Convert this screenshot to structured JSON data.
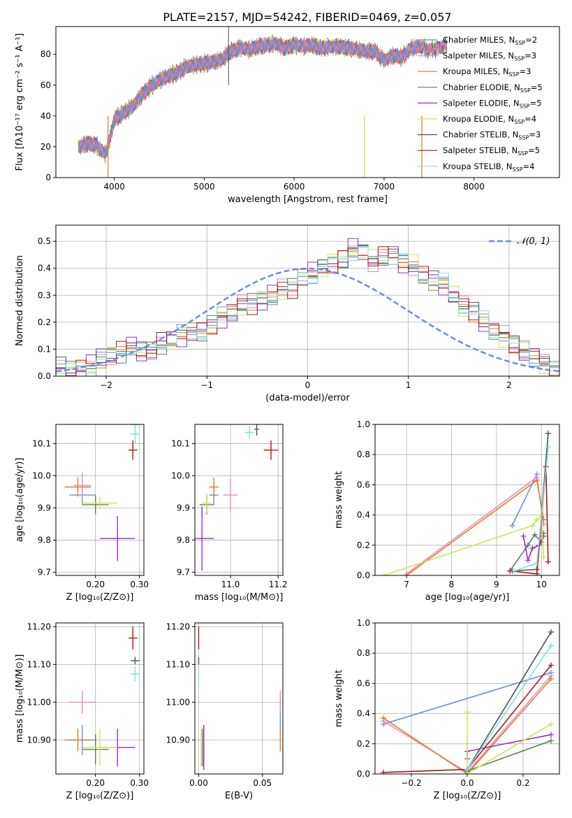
{
  "figure_title": "PLATE=2157, MJD=54242, FIBERID=0469, z=0.057",
  "colors": {
    "Chabrier MILES": "#6a8fd8",
    "Salpeter MILES": "#e58ac6",
    "Kroupa MILES": "#e07b26",
    "Chabrier ELODIE": "#5f7f5f",
    "Salpeter ELODIE": "#9a30b8",
    "Kroupa ELODIE": "#c9e659",
    "Chabrier STELIB": "#505050",
    "Salpeter STELIB": "#aa1515",
    "Kroupa STELIB": "#7ee0e4"
  },
  "legend_labels": [
    {
      "name": "Chabrier MILES",
      "base": "Chabrier MILES, N",
      "sub": "SSP",
      "tail": "=2"
    },
    {
      "name": "Salpeter MILES",
      "base": "Salpeter MILES, N",
      "sub": "SSP",
      "tail": "=3"
    },
    {
      "name": "Kroupa MILES",
      "base": "Kroupa MILES, N",
      "sub": "SSP",
      "tail": "=3"
    },
    {
      "name": "Chabrier ELODIE",
      "base": "Chabrier ELODIE, N",
      "sub": "SSP",
      "tail": "=5"
    },
    {
      "name": "Salpeter ELODIE",
      "base": "Salpeter ELODIE, N",
      "sub": "SSP",
      "tail": "=5"
    },
    {
      "name": "Kroupa ELODIE",
      "base": "Kroupa ELODIE, N",
      "sub": "SSP",
      "tail": "=4"
    },
    {
      "name": "Chabrier STELIB",
      "base": "Chabrier STELIB, N",
      "sub": "SSP",
      "tail": "=3"
    },
    {
      "name": "Salpeter STELIB",
      "base": "Salpeter STELIB, N",
      "sub": "SSP",
      "tail": "=5"
    },
    {
      "name": "Kroupa STELIB",
      "base": "Kroupa STELIB, N",
      "sub": "SSP",
      "tail": "=4"
    }
  ],
  "chart_data": [
    {
      "id": "spectrum",
      "type": "line",
      "xlabel": "wavelength [Angstrom, rest frame]",
      "ylabel": "Flux [fλ10⁻¹⁷ erg cm⁻² s⁻¹ A⁻¹]",
      "xlim": [
        3350,
        8950
      ],
      "ylim": [
        0,
        98
      ],
      "xticks": [
        4000,
        5000,
        6000,
        7000,
        8000
      ],
      "yticks": [
        0,
        20,
        40,
        60,
        80
      ],
      "x": [
        3600,
        3700,
        3800,
        3900,
        3950,
        4000,
        4100,
        4200,
        4300,
        4400,
        4500,
        4600,
        4700,
        4800,
        4900,
        5000,
        5100,
        5200,
        5300,
        5400,
        5500,
        5600,
        5700,
        5800,
        5900,
        6000,
        6100,
        6200,
        6300,
        6400,
        6500,
        6600,
        6700,
        6800,
        6900,
        7000,
        7100,
        7200,
        7300,
        7400,
        7500,
        7600,
        7700,
        7800,
        7900,
        8000,
        8100,
        8200,
        8300,
        8400,
        8500,
        8600,
        8700,
        8800,
        8900
      ],
      "y": [
        20,
        22,
        21,
        15,
        25,
        38,
        42,
        46,
        53,
        59,
        63,
        66,
        68,
        72,
        73,
        74,
        75,
        77,
        82,
        84,
        83,
        85,
        86,
        87,
        84,
        86,
        85,
        86,
        84,
        85,
        85,
        84,
        83,
        82,
        82,
        76,
        79,
        78,
        84,
        85,
        83,
        84,
        86,
        85,
        84,
        84,
        84,
        85,
        84,
        85,
        84,
        85,
        84,
        85,
        84
      ],
      "series_end": [
        7420,
        7700,
        7420,
        7700,
        7700,
        7700,
        7700,
        7420,
        7700
      ],
      "dips": [
        {
          "x": 3930,
          "y": 0
        },
        {
          "x": 6780,
          "y": 0
        },
        {
          "x": 7420,
          "y": 0
        }
      ],
      "spike": {
        "x": 5270,
        "y": 98
      }
    },
    {
      "id": "residuals",
      "type": "histogram",
      "xlabel": "(data-model)/error",
      "ylabel": "Normed distribution",
      "xlim": [
        -2.5,
        2.5
      ],
      "ylim": [
        0,
        0.56
      ],
      "xticks": [
        -2,
        -1,
        0,
        1,
        2
      ],
      "yticks": [
        0,
        0.1,
        0.2,
        0.3,
        0.4,
        0.5
      ],
      "bin_width": 0.1,
      "bin_start": -2.5,
      "base_values": [
        0.03,
        0.02,
        0.03,
        0.04,
        0.06,
        0.08,
        0.09,
        0.11,
        0.09,
        0.1,
        0.12,
        0.14,
        0.15,
        0.17,
        0.16,
        0.19,
        0.22,
        0.24,
        0.26,
        0.27,
        0.28,
        0.3,
        0.32,
        0.33,
        0.36,
        0.38,
        0.4,
        0.42,
        0.43,
        0.47,
        0.46,
        0.43,
        0.44,
        0.45,
        0.42,
        0.41,
        0.37,
        0.36,
        0.34,
        0.3,
        0.26,
        0.24,
        0.2,
        0.17,
        0.15,
        0.12,
        0.09,
        0.07,
        0.05,
        0.02
      ],
      "normal_label": "𝒩(0, 1)"
    },
    {
      "id": "age_vs_Z",
      "type": "scatter",
      "xlabel": "Z [log₁₀(Z/Z⊙)]",
      "ylabel": "age  [log₁₀(age/yr)]",
      "xlim": [
        0.11,
        0.31
      ],
      "ylim": [
        9.69,
        10.16
      ],
      "xticks": [
        0.2,
        0.3
      ],
      "yticks": [
        9.7,
        9.8,
        9.9,
        10.0,
        10.1
      ],
      "points": [
        {
          "s": "Chabrier MILES",
          "x": 0.17,
          "y": 9.94,
          "xe": 0.03,
          "ye": 0.03
        },
        {
          "s": "Salpeter MILES",
          "x": 0.17,
          "y": 9.97,
          "xe": 0.02,
          "ye": 0.04
        },
        {
          "s": "Kroupa MILES",
          "x": 0.16,
          "y": 9.965,
          "xe": 0.03,
          "ye": 0.03
        },
        {
          "s": "Chabrier ELODIE",
          "x": 0.2,
          "y": 9.91,
          "xe": 0.03,
          "ye": 0.03
        },
        {
          "s": "Salpeter ELODIE",
          "x": 0.25,
          "y": 9.805,
          "xe": 0.04,
          "ye": 0.07
        },
        {
          "s": "Kroupa ELODIE",
          "x": 0.21,
          "y": 9.915,
          "xe": 0.04,
          "ye": 0.02
        },
        {
          "s": "Chabrier STELIB",
          "x": 0.29,
          "y": 10.16,
          "xe": 0.01,
          "ye": 0.01
        },
        {
          "s": "Salpeter STELIB",
          "x": 0.285,
          "y": 10.08,
          "xe": 0.01,
          "ye": 0.03
        },
        {
          "s": "Kroupa STELIB",
          "x": 0.29,
          "y": 10.13,
          "xe": 0.01,
          "ye": 0.03
        }
      ]
    },
    {
      "id": "age_vs_mass",
      "type": "scatter",
      "xlabel": "mass [log₁₀(M/M⊙)]",
      "ylabel": "",
      "xlim": [
        10.85,
        11.22
      ],
      "ylim": [
        9.69,
        10.16
      ],
      "xticks": [
        11.0,
        11.2
      ],
      "yticks": [
        9.7,
        9.8,
        9.9,
        10.0,
        10.1
      ],
      "points": [
        {
          "s": "Chabrier MILES",
          "x": 10.93,
          "y": 9.94,
          "xe": 0.02,
          "ye": 0.03
        },
        {
          "s": "Salpeter MILES",
          "x": 11.0,
          "y": 9.94,
          "xe": 0.03,
          "ye": 0.05
        },
        {
          "s": "Kroupa MILES",
          "x": 10.93,
          "y": 9.965,
          "xe": 0.02,
          "ye": 0.03
        },
        {
          "s": "Chabrier ELODIE",
          "x": 10.9,
          "y": 9.91,
          "xe": 0.03,
          "ye": 0.03
        },
        {
          "s": "Salpeter ELODIE",
          "x": 10.88,
          "y": 9.805,
          "xe": 0.05,
          "ye": 0.1
        },
        {
          "s": "Kroupa ELODIE",
          "x": 10.9,
          "y": 9.915,
          "xe": 0.02,
          "ye": 0.03
        },
        {
          "s": "Chabrier STELIB",
          "x": 11.11,
          "y": 10.145,
          "xe": 0.01,
          "ye": 0.02
        },
        {
          "s": "Salpeter STELIB",
          "x": 11.17,
          "y": 10.08,
          "xe": 0.03,
          "ye": 0.03
        },
        {
          "s": "Kroupa STELIB",
          "x": 11.08,
          "y": 10.135,
          "xe": 0.02,
          "ye": 0.02
        }
      ]
    },
    {
      "id": "weight_vs_age",
      "type": "line",
      "xlabel": "age  [log₁₀(age/yr)]",
      "ylabel": "mass weight",
      "xlim": [
        6.3,
        10.4
      ],
      "ylim": [
        0,
        1
      ],
      "xticks": [
        7,
        8,
        9,
        10
      ],
      "yticks": [
        0,
        0.2,
        0.4,
        0.6,
        0.8,
        1.0
      ],
      "series": [
        {
          "s": "Chabrier MILES",
          "x": [
            9.35,
            9.9
          ],
          "y": [
            0.33,
            0.67
          ]
        },
        {
          "s": "Salpeter MILES",
          "x": [
            7.0,
            9.9,
            10.05
          ],
          "y": [
            0.01,
            0.65,
            0.34
          ]
        },
        {
          "s": "Kroupa MILES",
          "x": [
            7.0,
            9.9,
            10.05
          ],
          "y": [
            0.0,
            0.63,
            0.37
          ]
        },
        {
          "s": "Chabrier ELODIE",
          "x": [
            9.3,
            9.7,
            9.85,
            10.0,
            10.05
          ],
          "y": [
            0.03,
            0.2,
            0.27,
            0.22,
            0.28
          ]
        },
        {
          "s": "Salpeter ELODIE",
          "x": [
            9.6,
            9.7,
            9.8,
            9.95,
            10.05
          ],
          "y": [
            0.26,
            0.1,
            0.18,
            0.2,
            0.26
          ]
        },
        {
          "s": "Kroupa ELODIE",
          "x": [
            6.5,
            9.8,
            9.9,
            10.0,
            10.05
          ],
          "y": [
            0.0,
            0.33,
            0.37,
            0.4,
            0.12
          ]
        },
        {
          "s": "Chabrier STELIB",
          "x": [
            9.35,
            9.9,
            10.15
          ],
          "y": [
            0.03,
            0.04,
            0.94
          ]
        },
        {
          "s": "Salpeter STELIB",
          "x": [
            9.3,
            9.9,
            10.1,
            10.15
          ],
          "y": [
            0.03,
            0.01,
            0.72,
            0.09
          ]
        },
        {
          "s": "Kroupa STELIB",
          "x": [
            9.4,
            9.9,
            10.15
          ],
          "y": [
            0.03,
            0.08,
            0.85
          ]
        }
      ]
    },
    {
      "id": "mass_vs_Z",
      "type": "scatter",
      "xlabel": "Z [log₁₀(Z/Z⊙)]",
      "ylabel": "mass [log₁₀(M/M⊙)]",
      "xlim": [
        0.11,
        0.31
      ],
      "ylim": [
        10.81,
        11.21
      ],
      "xticks": [
        0.2,
        0.3
      ],
      "yticks": [
        10.9,
        11.0,
        11.1,
        11.2
      ],
      "points": [
        {
          "s": "Chabrier MILES",
          "x": 0.17,
          "y": 10.9,
          "xe": 0.03,
          "ye": 0.04
        },
        {
          "s": "Salpeter MILES",
          "x": 0.17,
          "y": 11.0,
          "xe": 0.03,
          "ye": 0.03
        },
        {
          "s": "Kroupa MILES",
          "x": 0.16,
          "y": 10.9,
          "xe": 0.03,
          "ye": 0.03
        },
        {
          "s": "Chabrier ELODIE",
          "x": 0.2,
          "y": 10.875,
          "xe": 0.03,
          "ye": 0.04
        },
        {
          "s": "Salpeter ELODIE",
          "x": 0.25,
          "y": 10.88,
          "xe": 0.04,
          "ye": 0.05
        },
        {
          "s": "Kroupa ELODIE",
          "x": 0.21,
          "y": 10.88,
          "xe": 0.04,
          "ye": 0.05
        },
        {
          "s": "Chabrier STELIB",
          "x": 0.29,
          "y": 11.11,
          "xe": 0.01,
          "ye": 0.01
        },
        {
          "s": "Salpeter STELIB",
          "x": 0.285,
          "y": 11.17,
          "xe": 0.01,
          "ye": 0.03
        },
        {
          "s": "Kroupa STELIB",
          "x": 0.29,
          "y": 11.075,
          "xe": 0.01,
          "ye": 0.02
        }
      ]
    },
    {
      "id": "mass_vs_ebv",
      "type": "scatter",
      "xlabel": "E(B-V)",
      "ylabel": "",
      "xlim": [
        -0.003,
        0.066
      ],
      "ylim": [
        10.81,
        11.21
      ],
      "xticks": [
        0.0,
        0.05
      ],
      "yticks": [
        10.9,
        11.0,
        11.1,
        11.2
      ],
      "points": [
        {
          "s": "Chabrier MILES",
          "x": 0.064,
          "y": 10.95,
          "xe": 0.0,
          "ye": 0.03
        },
        {
          "s": "Salpeter MILES",
          "x": 0.064,
          "y": 11.0,
          "xe": 0.0,
          "ye": 0.03
        },
        {
          "s": "Kroupa MILES",
          "x": 0.064,
          "y": 10.9,
          "xe": 0.0,
          "ye": 0.03
        },
        {
          "s": "Chabrier ELODIE",
          "x": 0.003,
          "y": 10.88,
          "xe": 0.0,
          "ye": 0.05
        },
        {
          "s": "Salpeter ELODIE",
          "x": 0.004,
          "y": 10.88,
          "xe": 0.0,
          "ye": 0.06
        },
        {
          "s": "Kroupa ELODIE",
          "x": 0.002,
          "y": 10.88,
          "xe": 0.0,
          "ye": 0.05
        },
        {
          "s": "Chabrier STELIB",
          "x": 0.0,
          "y": 11.11,
          "xe": 0.0,
          "ye": 0.01
        },
        {
          "s": "Salpeter STELIB",
          "x": 0.0,
          "y": 11.17,
          "xe": 0.0,
          "ye": 0.03
        },
        {
          "s": "Kroupa STELIB",
          "x": 0.0,
          "y": 11.075,
          "xe": 0.0,
          "ye": 0.02
        }
      ]
    },
    {
      "id": "weight_vs_Z",
      "type": "line",
      "xlabel": "Z [log₁₀(Z/Z⊙)]",
      "ylabel": "mass weight",
      "xlim": [
        -0.33,
        0.33
      ],
      "ylim": [
        0,
        1
      ],
      "xticks": [
        -0.2,
        0.0,
        0.2
      ],
      "yticks": [
        0,
        0.2,
        0.4,
        0.6,
        0.8,
        1.0
      ],
      "series": [
        {
          "s": "Chabrier MILES",
          "x": [
            -0.3,
            0.3
          ],
          "y": [
            0.33,
            0.67
          ]
        },
        {
          "s": "Salpeter MILES",
          "x": [
            -0.3,
            0.0,
            0.3
          ],
          "y": [
            0.35,
            0.01,
            0.65
          ]
        },
        {
          "s": "Kroupa MILES",
          "x": [
            -0.3,
            0.0,
            0.3
          ],
          "y": [
            0.37,
            0.0,
            0.63
          ]
        },
        {
          "s": "Chabrier ELODIE",
          "x": [
            0.0,
            0.3
          ],
          "y": [
            0.02,
            0.22
          ]
        },
        {
          "s": "Salpeter ELODIE",
          "x": [
            0.0,
            0.0,
            0.3
          ],
          "y": [
            0.1,
            0.15,
            0.26
          ]
        },
        {
          "s": "Kroupa ELODIE",
          "x": [
            0.0,
            0.0,
            0.3
          ],
          "y": [
            0.41,
            0.0,
            0.33
          ]
        },
        {
          "s": "Chabrier STELIB",
          "x": [
            0.0,
            0.3
          ],
          "y": [
            0.03,
            0.94
          ]
        },
        {
          "s": "Salpeter STELIB",
          "x": [
            -0.3,
            0.0,
            0.3
          ],
          "y": [
            0.01,
            0.03,
            0.72
          ]
        },
        {
          "s": "Kroupa STELIB",
          "x": [
            0.0,
            0.3
          ],
          "y": [
            0.03,
            0.85
          ]
        }
      ]
    }
  ]
}
